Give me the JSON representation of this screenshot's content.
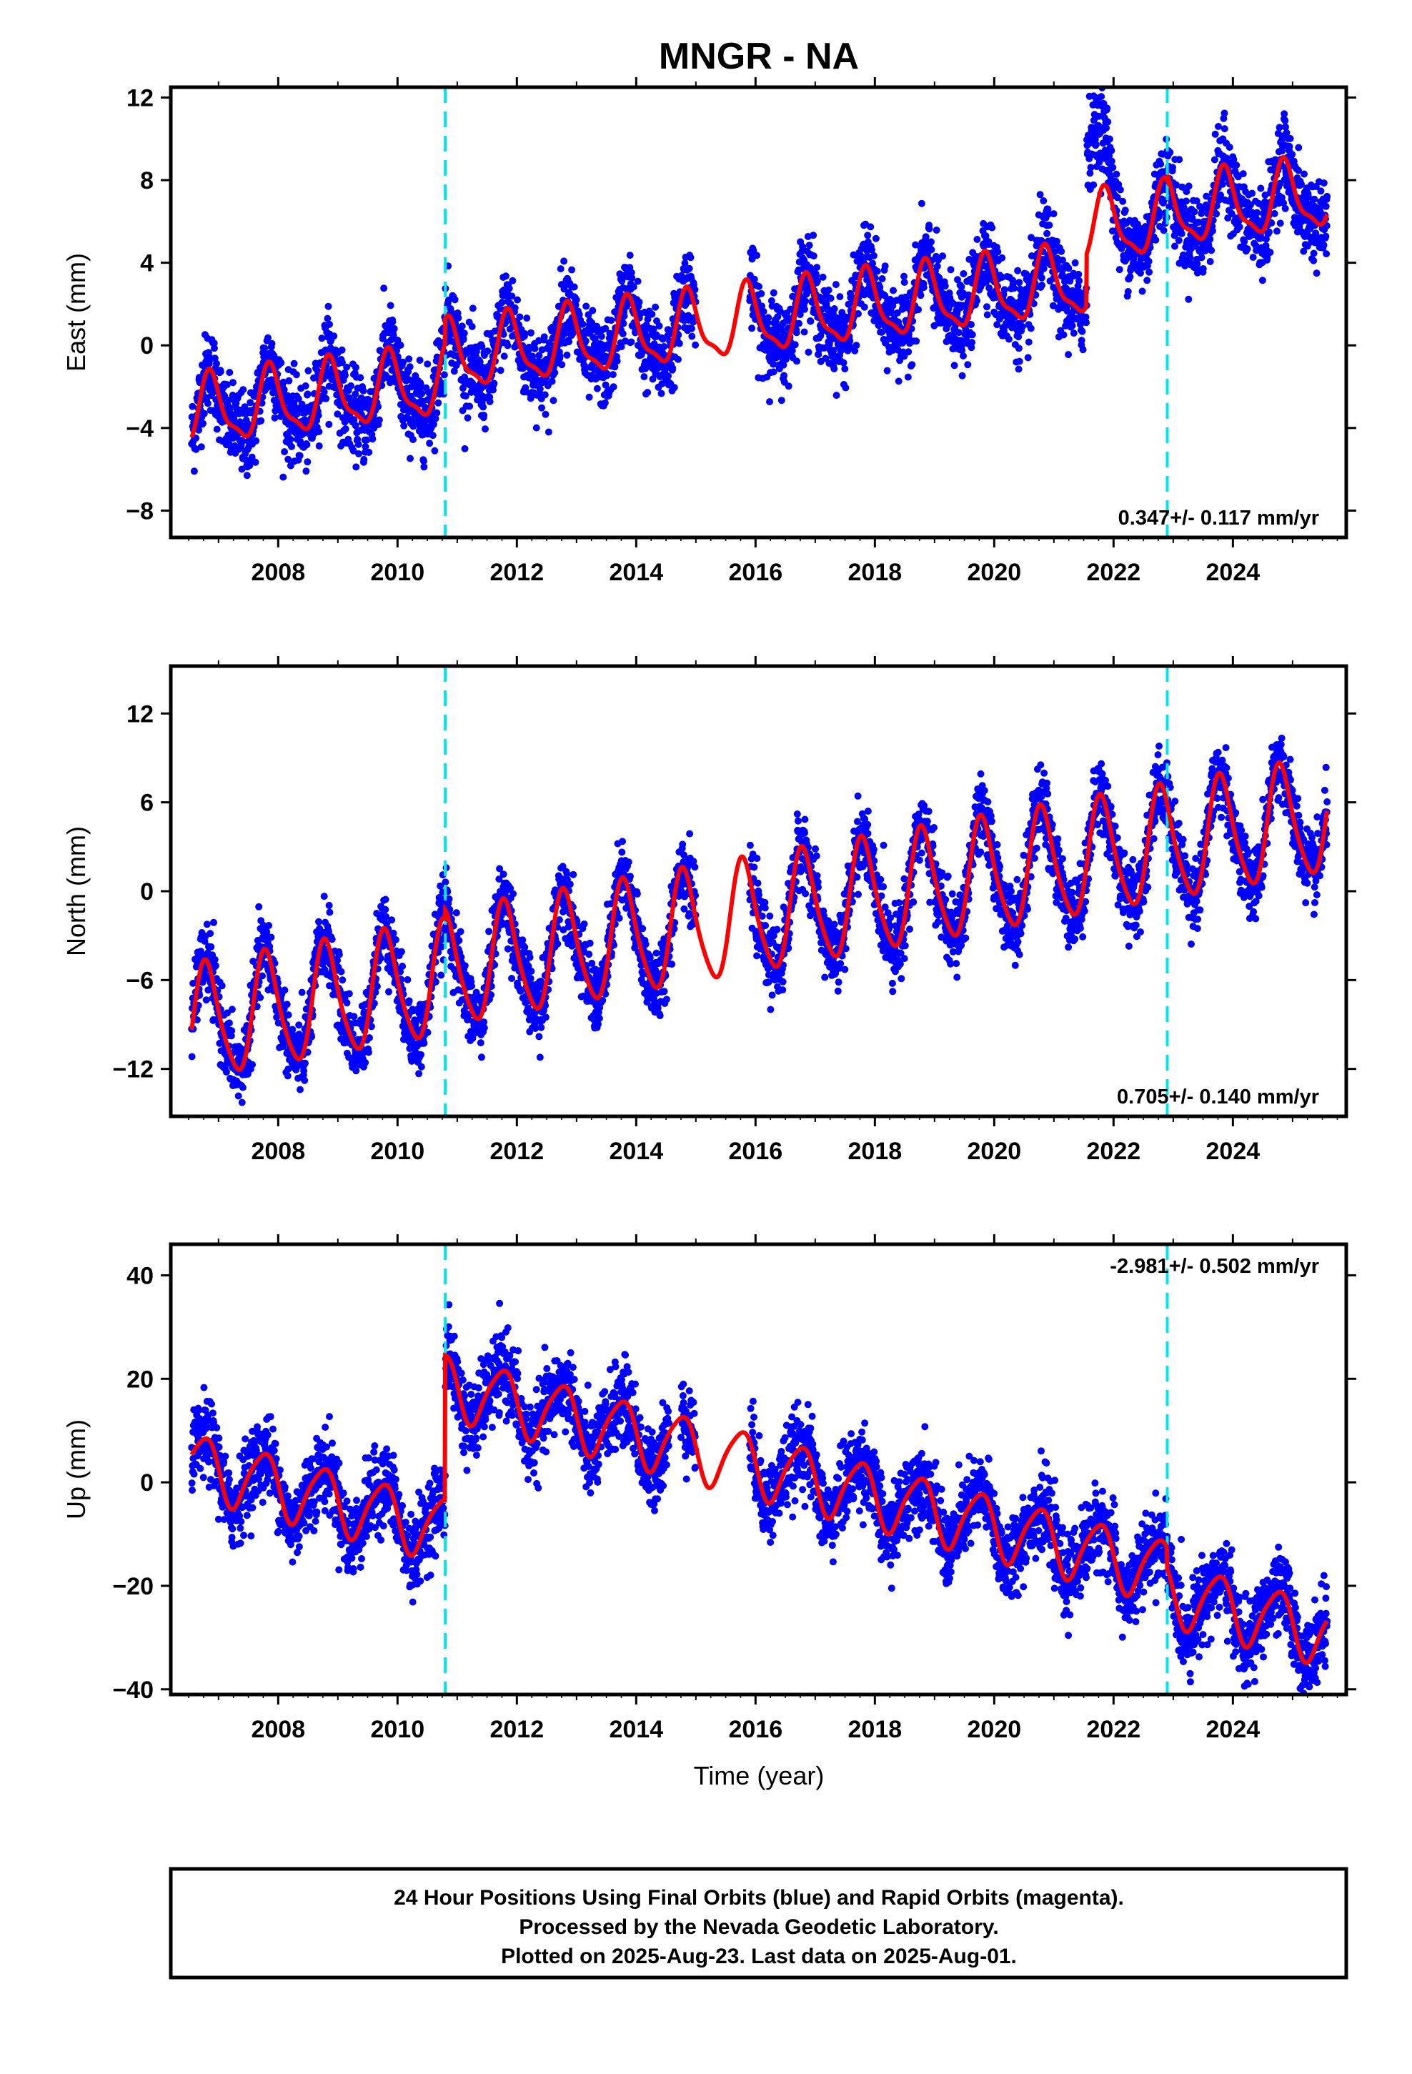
{
  "chart_data": {
    "type": "scatter",
    "title": "MNGR - NA",
    "xlabel": "Time (year)",
    "xlim": [
      2006.2,
      2025.9
    ],
    "x_ticks": [
      2008,
      2010,
      2012,
      2014,
      2016,
      2018,
      2020,
      2022,
      2024
    ],
    "x_tick_labels": [
      "2008",
      "2010",
      "2012",
      "2014",
      "2016",
      "2018",
      "2020",
      "2022",
      "2024"
    ],
    "equipment_changes": [
      2010.8,
      2022.9
    ],
    "data_range": [
      2006.55,
      2025.58
    ],
    "gap": [
      2015.0,
      2015.9
    ],
    "marker_color": "#0000ff",
    "model_color": "#ff0000",
    "event_color": "#00e5ee",
    "panels": [
      {
        "id": "east",
        "ylabel": "East (mm)",
        "ylim": [
          -9.3,
          12.5
        ],
        "y_ticks": [
          -8,
          -4,
          0,
          4,
          8,
          12
        ],
        "y_tick_labels": [
          "−8",
          "−4",
          "0",
          "4",
          "8",
          "12"
        ],
        "rate": "0.347+/- 0.117 mm/yr",
        "rate_position": "bottom-right",
        "model": {
          "y0": -3.3,
          "slope": 0.347,
          "amp1": 1.6,
          "phase1": 0.62,
          "amp2": 0.5,
          "phase2": 0.2,
          "steps": [
            {
              "t": 2010.8,
              "dy": 1.2
            },
            {
              "t": 2021.55,
              "dy": 2.5
            },
            {
              "t": 2022.9,
              "dy": 0.3
            }
          ]
        },
        "noise": 1.0,
        "transients": [
          {
            "t0": 2021.55,
            "t1": 2022.1,
            "dy": 5.5
          }
        ]
      },
      {
        "id": "north",
        "ylabel": "North (mm)",
        "ylim": [
          -15.2,
          15.2
        ],
        "y_ticks": [
          -12,
          -6,
          0,
          6,
          12
        ],
        "y_tick_labels": [
          "−12",
          "−6",
          "0",
          "6",
          "12"
        ],
        "rate": "0.705+/- 0.140 mm/yr",
        "rate_position": "bottom-right",
        "model": {
          "y0": -9.0,
          "slope": 0.705,
          "amp1": 3.8,
          "phase1": 0.55,
          "amp2": 0.6,
          "phase2": 0.1,
          "steps": [
            {
              "t": 2010.8,
              "dy": 0.6
            },
            {
              "t": 2022.9,
              "dy": 0.0
            }
          ]
        },
        "noise": 1.2,
        "transients": []
      },
      {
        "id": "up",
        "ylabel": "Up (mm)",
        "ylim": [
          -41,
          46
        ],
        "y_ticks": [
          -40,
          -20,
          0,
          20,
          40
        ],
        "y_tick_labels": [
          "−40",
          "−20",
          "0",
          "20",
          "40"
        ],
        "rate": "-2.981+/- 0.502 mm/yr",
        "rate_position": "top-right",
        "model": {
          "y0": 3.5,
          "slope": -2.981,
          "amp1": 6.0,
          "phase1": 0.5,
          "amp2": 1.0,
          "phase2": 0.3,
          "steps": [
            {
              "t": 2010.8,
              "dy": 28.0
            },
            {
              "t": 2022.9,
              "dy": -4.0
            }
          ]
        },
        "noise": 3.8,
        "transients": []
      }
    ]
  },
  "footer": {
    "line1": "24 Hour Positions Using Final Orbits (blue) and Rapid Orbits (magenta).",
    "line2": "Processed by the Nevada Geodetic Laboratory.",
    "line3": "Plotted on 2025-Aug-23. Last data on 2025-Aug-01."
  }
}
